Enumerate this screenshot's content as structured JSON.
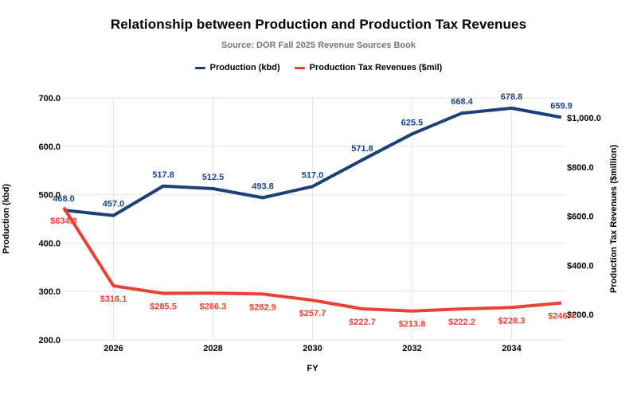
{
  "header": {
    "title": "Relationship between Production and Production Tax Revenues",
    "subtitle": "Source: DOR Fall 2025 Revenue Sources Book"
  },
  "legend": [
    {
      "label": "Production (kbd)",
      "color": "#1b4177"
    },
    {
      "label": "Production Tax Revenues ($mil)",
      "color": "#e94235"
    }
  ],
  "chart_data": {
    "type": "line",
    "title": "Relationship between Production and Production Tax Revenues",
    "subtitle": "Source: DOR Fall 2025 Revenue Sources Book",
    "xlabel": "FY",
    "x": [
      2025,
      2026,
      2027,
      2028,
      2029,
      2030,
      2031,
      2032,
      2033,
      2034,
      2035
    ],
    "x_ticks": [
      {
        "year": 2026,
        "label": "2026"
      },
      {
        "year": 2028,
        "label": "2028"
      },
      {
        "year": 2030,
        "label": "2030"
      },
      {
        "year": 2032,
        "label": "2032"
      },
      {
        "year": 2034,
        "label": "2034"
      }
    ],
    "grid": true,
    "legend_position": "top",
    "left_axis": {
      "title": "Production (kbd)",
      "min": 200,
      "max": 700,
      "tick_values": [
        700,
        600,
        500,
        400,
        300,
        200
      ],
      "ticks": [
        "700.0",
        "600.0",
        "500.0",
        "400.0",
        "300.0",
        "200.0"
      ]
    },
    "right_axis": {
      "title": "Production Tax Revenues ($million)",
      "tick_values": [
        1000,
        800,
        600,
        400,
        200
      ],
      "ticks": [
        "$1,000.0",
        "$800.0",
        "$600.0",
        "$400.0",
        "$200.0"
      ]
    },
    "series": [
      {
        "name": "Production (kbd)",
        "axis": "left",
        "color": "#1b4177",
        "label_color": "#1c4587",
        "values": [
          468.0,
          457.0,
          517.8,
          512.5,
          493.8,
          517.0,
          571.8,
          625.5,
          668.4,
          678.8,
          659.9
        ],
        "labels": [
          "468.0",
          "457.0",
          "517.8",
          "512.5",
          "493.8",
          "517.0",
          "571.8",
          "625.5",
          "668.4",
          "678.8",
          "659.9"
        ]
      },
      {
        "name": "Production Tax Revenues ($mil)",
        "axis": "right",
        "color": "#e94235",
        "label_color": "#ea4335",
        "values": [
          634.8,
          316.1,
          285.5,
          286.3,
          282.9,
          257.7,
          222.7,
          213.8,
          222.2,
          228.3,
          246.4
        ],
        "labels": [
          "$634.8",
          "$316.1",
          "$285.5",
          "$286.3",
          "$282.9",
          "$257.7",
          "$222.7",
          "$213.8",
          "$222.2",
          "$228.3",
          "$246.4"
        ]
      }
    ],
    "colors": {
      "gridline": "#e6e6e6",
      "subtitle": "#757575",
      "axis_text": "#000000"
    }
  }
}
